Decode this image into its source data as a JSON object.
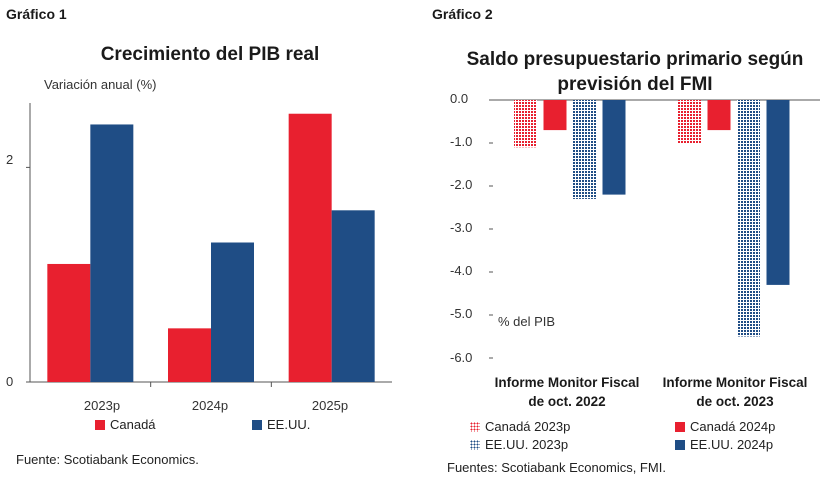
{
  "colors": {
    "canada": "#e8202f",
    "usa": "#1f4d85",
    "axis": "#555555"
  },
  "chart_data": [
    {
      "figure_label": "Gráfico 1",
      "type": "bar",
      "title": "Crecimiento del PIB real",
      "ylabel": "Variación anual (%)",
      "categories": [
        "2023p",
        "2024p",
        "2025p"
      ],
      "series": [
        {
          "name": "Canadá",
          "values": [
            1.1,
            0.5,
            2.5
          ]
        },
        {
          "name": "EE.UU.",
          "values": [
            2.4,
            1.3,
            1.6
          ]
        }
      ],
      "ylim": [
        0,
        2.6
      ],
      "yticks": [
        "0",
        "2"
      ],
      "legend_position": "bottom",
      "source": "Fuente: Scotiabank Economics."
    },
    {
      "figure_label": "Gráfico 2",
      "type": "bar",
      "title": "Saldo presupuestario primario según previsión del FMI",
      "ylabel": "% del PIB",
      "categories": [
        "Informe Monitor Fiscal de oct. 2022",
        "Informe Monitor Fiscal de oct. 2023"
      ],
      "series": [
        {
          "name": "Canadá 2023p",
          "values": [
            -1.1,
            -1.0
          ]
        },
        {
          "name": "Canadá 2024p",
          "values": [
            -0.7,
            -0.7
          ]
        },
        {
          "name": "EE.UU. 2023p",
          "values": [
            -2.3,
            -5.5
          ]
        },
        {
          "name": "EE.UU. 2024p",
          "values": [
            -2.2,
            -4.3
          ]
        }
      ],
      "ylim": [
        -6.0,
        0.0
      ],
      "yticks": [
        "0.0",
        "-1.0",
        "-2.0",
        "-3.0",
        "-4.0",
        "-5.0",
        "-6.0"
      ],
      "legend_position": "bottom",
      "source": "Fuentes: Scotiabank Economics, FMI."
    }
  ]
}
